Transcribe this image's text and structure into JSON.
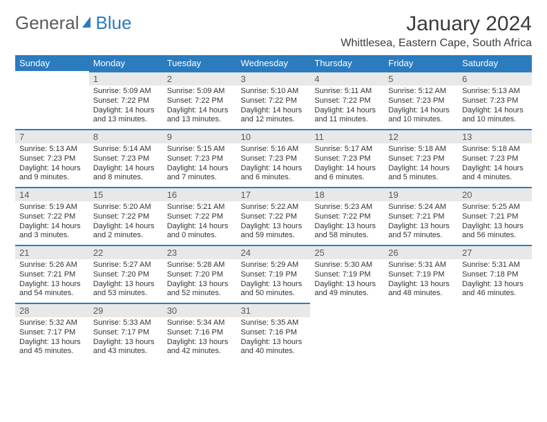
{
  "logo": {
    "general": "General",
    "blue": "Blue",
    "brand_color": "#2b7bbf"
  },
  "title": "January 2024",
  "location": "Whittlesea, Eastern Cape, South Africa",
  "header_bg": "#2b7bbf",
  "header_fg": "#ffffff",
  "daynum_bg": "#e8e8e8",
  "daynum_border": "#2b7bbf",
  "text_color": "#333333",
  "day_headers": [
    "Sunday",
    "Monday",
    "Tuesday",
    "Wednesday",
    "Thursday",
    "Friday",
    "Saturday"
  ],
  "weeks": [
    [
      null,
      {
        "n": "1",
        "sr": "5:09 AM",
        "ss": "7:22 PM",
        "dh": "14",
        "dm": "13"
      },
      {
        "n": "2",
        "sr": "5:09 AM",
        "ss": "7:22 PM",
        "dh": "14",
        "dm": "13"
      },
      {
        "n": "3",
        "sr": "5:10 AM",
        "ss": "7:22 PM",
        "dh": "14",
        "dm": "12"
      },
      {
        "n": "4",
        "sr": "5:11 AM",
        "ss": "7:22 PM",
        "dh": "14",
        "dm": "11"
      },
      {
        "n": "5",
        "sr": "5:12 AM",
        "ss": "7:23 PM",
        "dh": "14",
        "dm": "10"
      },
      {
        "n": "6",
        "sr": "5:13 AM",
        "ss": "7:23 PM",
        "dh": "14",
        "dm": "10"
      }
    ],
    [
      {
        "n": "7",
        "sr": "5:13 AM",
        "ss": "7:23 PM",
        "dh": "14",
        "dm": "9"
      },
      {
        "n": "8",
        "sr": "5:14 AM",
        "ss": "7:23 PM",
        "dh": "14",
        "dm": "8"
      },
      {
        "n": "9",
        "sr": "5:15 AM",
        "ss": "7:23 PM",
        "dh": "14",
        "dm": "7"
      },
      {
        "n": "10",
        "sr": "5:16 AM",
        "ss": "7:23 PM",
        "dh": "14",
        "dm": "6"
      },
      {
        "n": "11",
        "sr": "5:17 AM",
        "ss": "7:23 PM",
        "dh": "14",
        "dm": "6"
      },
      {
        "n": "12",
        "sr": "5:18 AM",
        "ss": "7:23 PM",
        "dh": "14",
        "dm": "5"
      },
      {
        "n": "13",
        "sr": "5:18 AM",
        "ss": "7:23 PM",
        "dh": "14",
        "dm": "4"
      }
    ],
    [
      {
        "n": "14",
        "sr": "5:19 AM",
        "ss": "7:22 PM",
        "dh": "14",
        "dm": "3"
      },
      {
        "n": "15",
        "sr": "5:20 AM",
        "ss": "7:22 PM",
        "dh": "14",
        "dm": "2"
      },
      {
        "n": "16",
        "sr": "5:21 AM",
        "ss": "7:22 PM",
        "dh": "14",
        "dm": "0"
      },
      {
        "n": "17",
        "sr": "5:22 AM",
        "ss": "7:22 PM",
        "dh": "13",
        "dm": "59"
      },
      {
        "n": "18",
        "sr": "5:23 AM",
        "ss": "7:22 PM",
        "dh": "13",
        "dm": "58"
      },
      {
        "n": "19",
        "sr": "5:24 AM",
        "ss": "7:21 PM",
        "dh": "13",
        "dm": "57"
      },
      {
        "n": "20",
        "sr": "5:25 AM",
        "ss": "7:21 PM",
        "dh": "13",
        "dm": "56"
      }
    ],
    [
      {
        "n": "21",
        "sr": "5:26 AM",
        "ss": "7:21 PM",
        "dh": "13",
        "dm": "54"
      },
      {
        "n": "22",
        "sr": "5:27 AM",
        "ss": "7:20 PM",
        "dh": "13",
        "dm": "53"
      },
      {
        "n": "23",
        "sr": "5:28 AM",
        "ss": "7:20 PM",
        "dh": "13",
        "dm": "52"
      },
      {
        "n": "24",
        "sr": "5:29 AM",
        "ss": "7:19 PM",
        "dh": "13",
        "dm": "50"
      },
      {
        "n": "25",
        "sr": "5:30 AM",
        "ss": "7:19 PM",
        "dh": "13",
        "dm": "49"
      },
      {
        "n": "26",
        "sr": "5:31 AM",
        "ss": "7:19 PM",
        "dh": "13",
        "dm": "48"
      },
      {
        "n": "27",
        "sr": "5:31 AM",
        "ss": "7:18 PM",
        "dh": "13",
        "dm": "46"
      }
    ],
    [
      {
        "n": "28",
        "sr": "5:32 AM",
        "ss": "7:17 PM",
        "dh": "13",
        "dm": "45"
      },
      {
        "n": "29",
        "sr": "5:33 AM",
        "ss": "7:17 PM",
        "dh": "13",
        "dm": "43"
      },
      {
        "n": "30",
        "sr": "5:34 AM",
        "ss": "7:16 PM",
        "dh": "13",
        "dm": "42"
      },
      {
        "n": "31",
        "sr": "5:35 AM",
        "ss": "7:16 PM",
        "dh": "13",
        "dm": "40"
      },
      null,
      null,
      null
    ]
  ],
  "labels": {
    "sunrise": "Sunrise:",
    "sunset": "Sunset:",
    "daylight": "Daylight:",
    "hours_sfx": "hours",
    "and": "and",
    "minutes_sfx": "minutes."
  }
}
